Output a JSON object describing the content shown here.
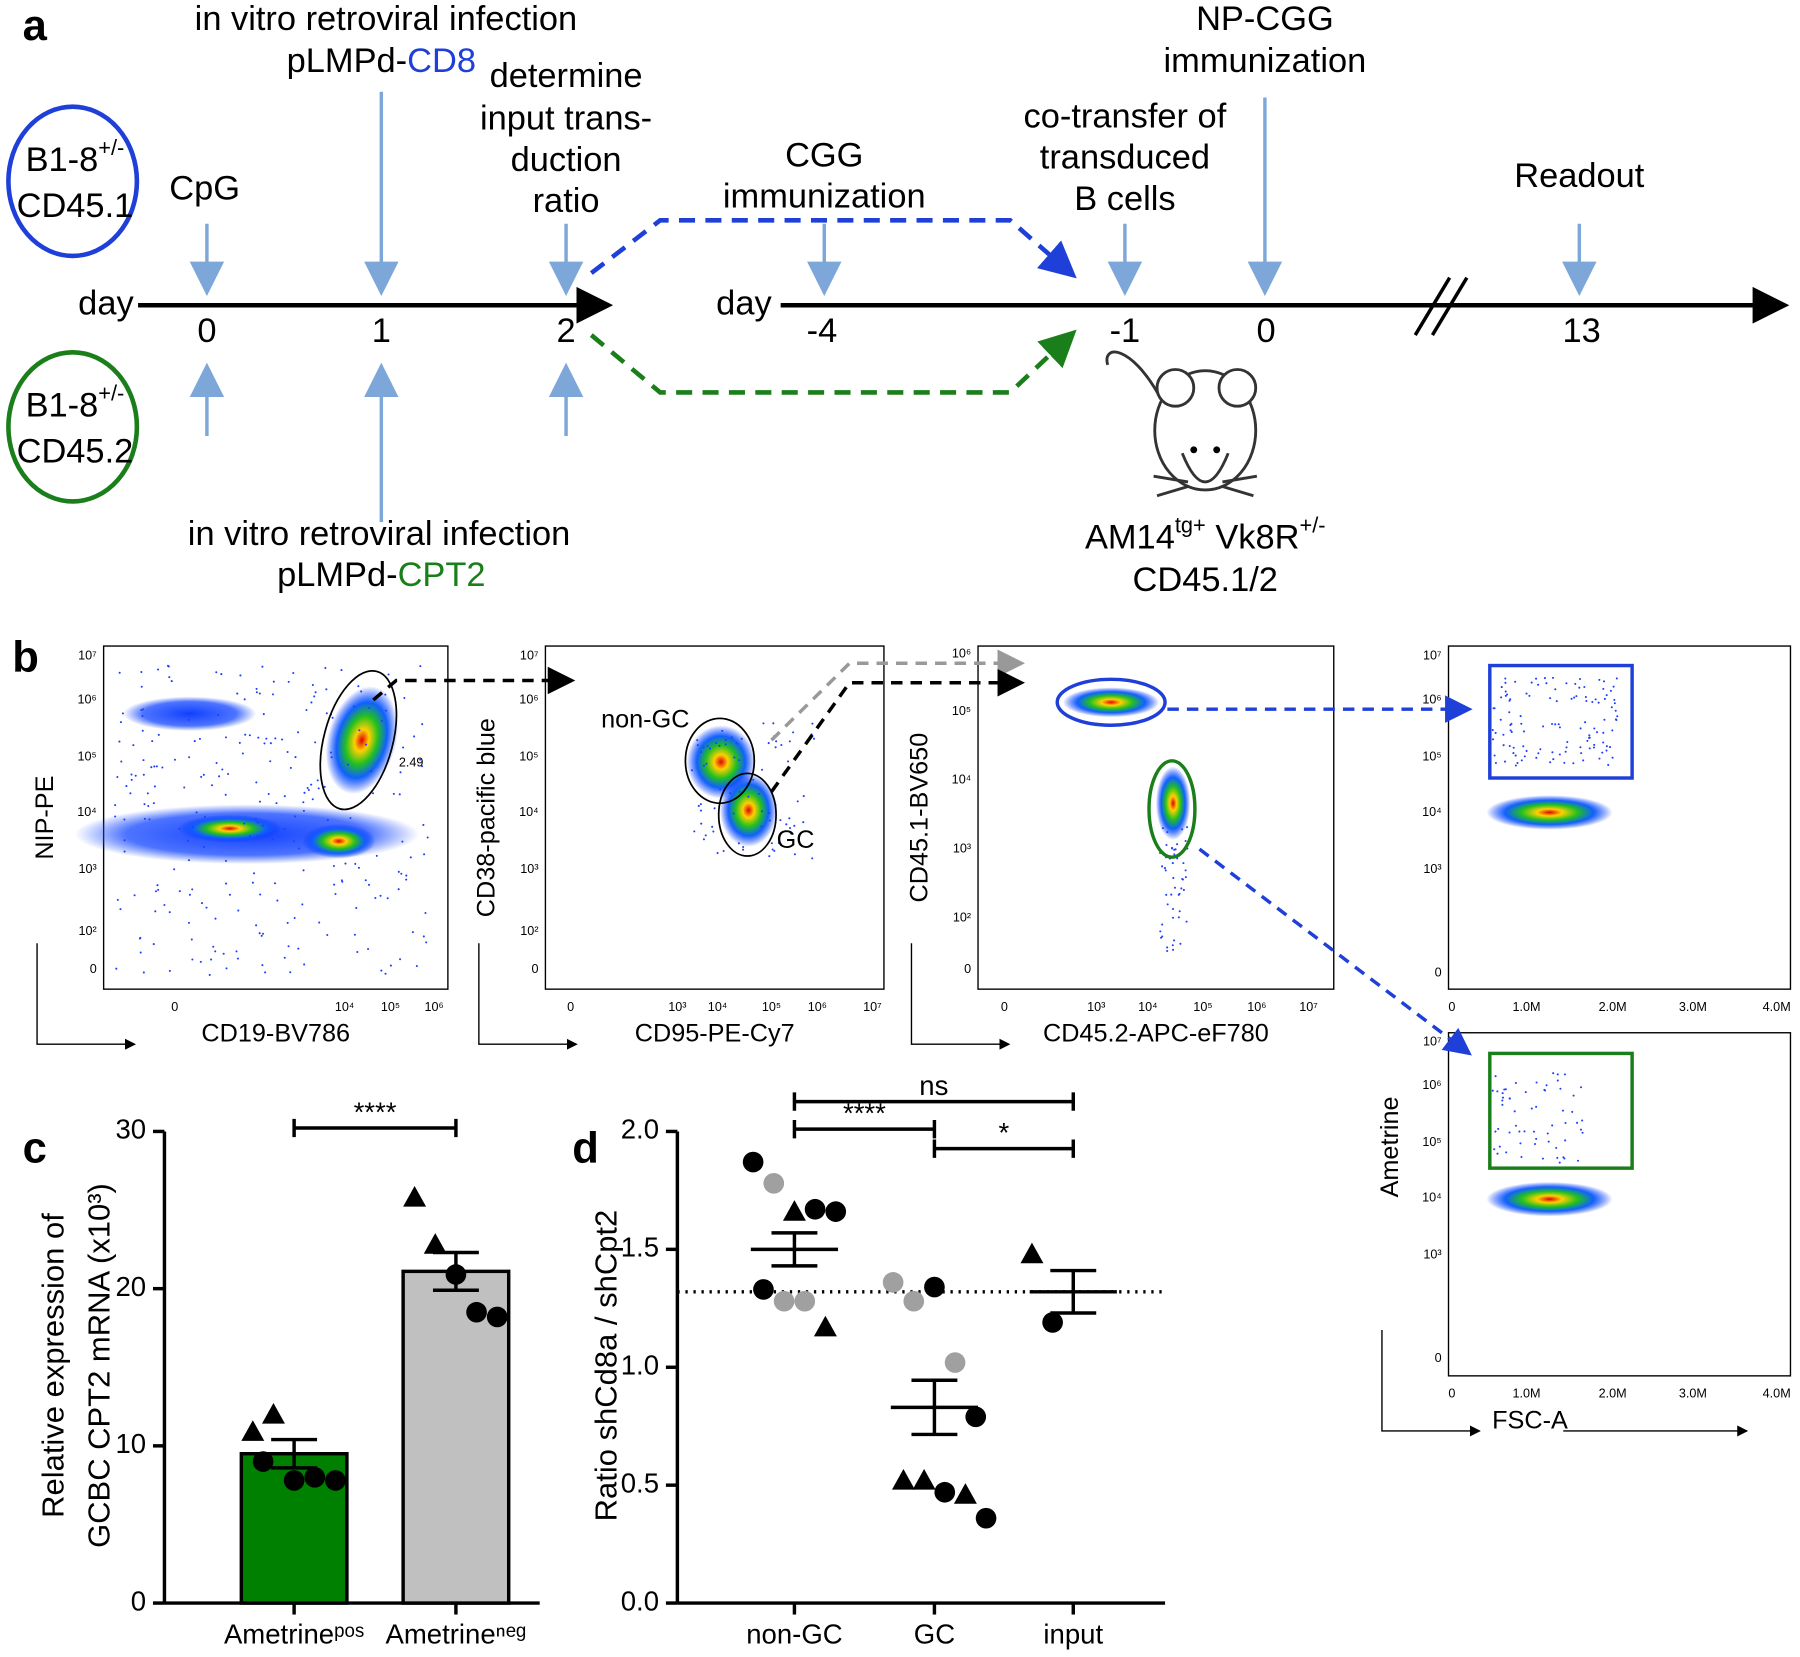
{
  "panel_a": {
    "label": "a",
    "donors": [
      {
        "name": "B1-8",
        "sup": "+/-",
        "strain": "CD45.1"
      },
      {
        "name": "B1-8",
        "sup": "+/-",
        "strain": "CD45.2"
      }
    ],
    "day_label": "day",
    "first_days": [
      "0",
      "1",
      "2"
    ],
    "cpg": "CpG",
    "infection_top": [
      "in vitro retroviral infection",
      "pLMPd-",
      "CD8"
    ],
    "ratio": [
      "determine",
      "input trans-",
      "duction",
      "ratio"
    ],
    "infection_bottom": [
      "in vitro retroviral infection",
      "pLMPd-",
      "CPT2"
    ],
    "second_day_label": "day",
    "second_days": [
      "-4",
      "-1",
      "0",
      "13"
    ],
    "cgg": [
      "CGG",
      "immunization"
    ],
    "cotransfer": [
      "co-transfer of",
      "transduced",
      "B cells"
    ],
    "np_cgg": [
      "NP-CGG",
      "immunization"
    ],
    "readout": "Readout",
    "recipient": {
      "parts": [
        "AM14",
        "tg+",
        " Vk8R",
        "+/-"
      ],
      "line2": "CD45.1/2"
    }
  },
  "panel_b": {
    "label": "b",
    "plots": [
      {
        "y_label": "NIP-PE",
        "x_label": "CD19-BV786",
        "yticks": [
          "0",
          "10²",
          "10³",
          "10⁴",
          "10⁵",
          "10⁶",
          "10⁷"
        ],
        "xticks": [
          "0",
          "10⁴",
          "10⁵",
          "10⁶"
        ],
        "annotations": [
          "2.49"
        ]
      },
      {
        "y_label": "CD38-pacific blue",
        "x_label": "CD95-PE-Cy7",
        "yticks": [
          "0",
          "10²",
          "10³",
          "10⁴",
          "10⁵",
          "10⁶",
          "10⁷"
        ],
        "xticks": [
          "0",
          "10³",
          "10⁴",
          "10⁵",
          "10⁶",
          "10⁷"
        ],
        "annotations": [
          "non-GC",
          "GC"
        ]
      },
      {
        "y_label": "CD45.1-BV650",
        "x_label": "CD45.2-APC-eF780",
        "yticks": [
          "0",
          "10²",
          "10³",
          "10⁴",
          "10⁵",
          "10⁶"
        ],
        "xticks": [
          "0",
          "10³",
          "10⁴",
          "10⁵",
          "10⁶",
          "10⁷"
        ]
      },
      {
        "yticks": [
          "0",
          "10³",
          "10⁴",
          "10⁵",
          "10⁶",
          "10⁷"
        ],
        "xticks": [
          "0",
          "1.0M",
          "2.0M",
          "3.0M",
          "4.0M"
        ]
      },
      {
        "y_label": "Ametrine",
        "x_label": "FSC-A",
        "yticks": [
          "0",
          "10³",
          "10⁴",
          "10⁵",
          "10⁶",
          "10⁷"
        ],
        "xticks": [
          "0",
          "1.0M",
          "2.0M",
          "3.0M",
          "4.0M"
        ]
      }
    ]
  },
  "chart_data": [
    {
      "type": "bar",
      "panel_label": "c",
      "y_label": [
        "Relative expression of",
        "GCBC CPT2 mRNA (x10³)"
      ],
      "categories": [
        "Ametrineᵖᵒˢ",
        "Ametrineⁿᵉᵍ"
      ],
      "values": [
        9.5,
        21.1
      ],
      "errors": [
        0.9,
        1.2
      ],
      "colors": [
        "#008000",
        "#c0c0c0"
      ],
      "points": [
        [
          10.9,
          12.0,
          7.8,
          8.0,
          7.8,
          9.0
        ],
        [
          25.8,
          22.8,
          20.9,
          18.5,
          18.2
        ]
      ],
      "point_shapes": [
        [
          "triangle",
          "triangle",
          "circle",
          "circle",
          "circle",
          "circle"
        ],
        [
          "triangle",
          "triangle",
          "circle",
          "circle",
          "circle"
        ]
      ],
      "ylim": [
        0,
        30
      ],
      "yticks": [
        0,
        10,
        20,
        30
      ],
      "significance": [
        {
          "label": "****"
        }
      ]
    },
    {
      "type": "dot",
      "panel_label": "d",
      "y_label": "Ratio shCd8a / shCpt2",
      "categories": [
        "non-GC",
        "GC",
        "input"
      ],
      "values": [
        1.5,
        0.83,
        1.32
      ],
      "errors": [
        0.07,
        0.115,
        0.09
      ],
      "points": [
        [
          1.87,
          1.78,
          1.66,
          1.67,
          1.66,
          1.33,
          1.28,
          1.28,
          1.17
        ],
        [
          1.36,
          1.28,
          1.34,
          1.02,
          0.79,
          0.52,
          0.52,
          0.47,
          0.46,
          0.36
        ],
        [
          1.48,
          1.19
        ]
      ],
      "point_shapes": [
        [
          "circle",
          "circle",
          "triangle",
          "circle",
          "circle",
          "circle",
          "circle",
          "circle",
          "triangle"
        ],
        [
          "circle",
          "circle",
          "circle",
          "circle",
          "circle",
          "triangle",
          "triangle",
          "circle",
          "triangle",
          "circle"
        ],
        [
          "triangle",
          "circle"
        ]
      ],
      "point_colors": [
        [
          "#000000",
          "#a0a0a0",
          "#000000",
          "#000000",
          "#000000",
          "#000000",
          "#a0a0a0",
          "#a0a0a0",
          "#000000"
        ],
        [
          "#a0a0a0",
          "#a0a0a0",
          "#000000",
          "#a0a0a0",
          "#000000",
          "#000000",
          "#000000",
          "#000000",
          "#000000",
          "#000000"
        ],
        [
          "#000000",
          "#000000"
        ]
      ],
      "reference_line": 1.32,
      "ylim": [
        0,
        2
      ],
      "yticks": [
        {
          "value": 0,
          "label": "0.0"
        },
        0.5,
        {
          "value": 1,
          "label": "1.0"
        },
        1.5,
        {
          "value": 2,
          "label": "2.0"
        }
      ],
      "significance": [
        {
          "label": "ns"
        },
        {
          "label": "****"
        },
        {
          "label": "*"
        }
      ]
    }
  ]
}
